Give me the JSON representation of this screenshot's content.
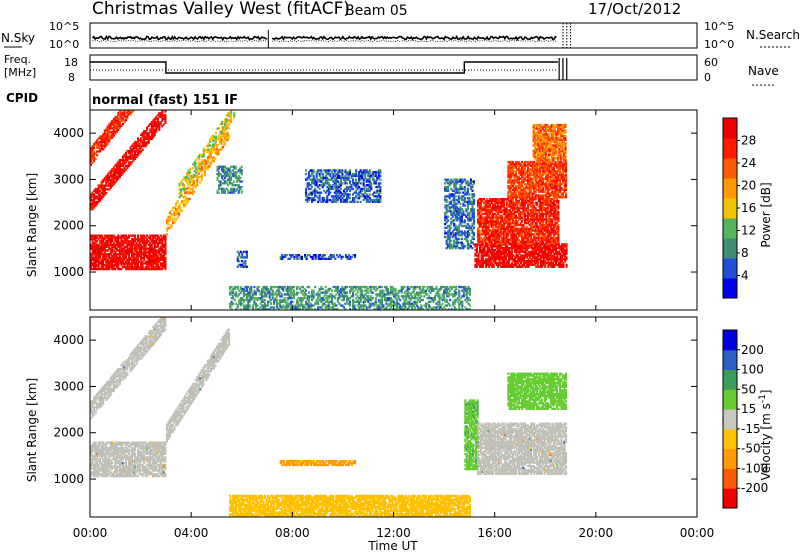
{
  "header": {
    "station": "Christmas Valley West (fitACF)",
    "beam": "Beam 05",
    "date": "17/Oct/2012"
  },
  "top_panels": {
    "nsky_label": "N.Sky",
    "nsky_ticks": [
      "10^5",
      "10^0"
    ],
    "nsearch_label": "N.Search",
    "freq_label_line1": "Freq.",
    "freq_label_line2": "[MHz]",
    "freq_ticks": [
      "18",
      "8"
    ],
    "nave_ticks": [
      "60",
      "0"
    ],
    "nave_label": "Nave",
    "cpid_label": "CPID",
    "cpid_value": "normal (fast) 151 IF"
  },
  "x_axis": {
    "label": "Time UT",
    "ticks": [
      "00:00",
      "04:00",
      "08:00",
      "12:00",
      "16:00",
      "20:00",
      "00:00"
    ]
  },
  "colors": {
    "power_scale": [
      "#0000e6",
      "#1f4fd6",
      "#3c8f74",
      "#55b35c",
      "#f2c300",
      "#ff9a00",
      "#ff5a00",
      "#ff1a00",
      "#ee0000"
    ],
    "velocity_scale": [
      "#ee0000",
      "#ff5a00",
      "#ff9a00",
      "#ffc000",
      "#c8c8c0",
      "#66cc33",
      "#3c9e5c",
      "#2b5fc4",
      "#0000dd"
    ],
    "ground_scatter": "#c0c0b8"
  },
  "chart_data": [
    {
      "type": "heatmap",
      "title": "Power",
      "xlabel": "Time UT",
      "ylabel": "Slant Range [km]",
      "xlim": [
        0,
        24
      ],
      "ylim": [
        180,
        4500
      ],
      "y_ticks": [
        1000,
        2000,
        3000,
        4000
      ],
      "colorbar": {
        "label": "Power [dB]",
        "ticks": [
          4,
          8,
          12,
          16,
          20,
          24,
          28
        ],
        "range": [
          0,
          32
        ]
      },
      "features": [
        {
          "t0": 0.0,
          "t1": 3.0,
          "r0": 1050,
          "r1": 1800,
          "value": 30
        },
        {
          "t0": 0.0,
          "t1": 3.0,
          "r0": 2300,
          "r1": 2700,
          "value": 29,
          "slope": 650
        },
        {
          "t0": 0.0,
          "t1": 2.5,
          "r0": 3300,
          "r1": 3700,
          "value": 26,
          "slope": 700
        },
        {
          "t0": 3.0,
          "t1": 5.5,
          "r0": 1800,
          "r1": 2200,
          "value": 18,
          "slope": 850
        },
        {
          "t0": 3.5,
          "t1": 5.7,
          "r0": 2600,
          "r1": 2900,
          "value": 15,
          "slope": 800
        },
        {
          "t0": 5.0,
          "t1": 6.0,
          "r0": 2700,
          "r1": 3300,
          "value": 9
        },
        {
          "t0": 5.8,
          "t1": 6.2,
          "r0": 1100,
          "r1": 1450,
          "value": 6
        },
        {
          "t0": 7.5,
          "t1": 10.5,
          "r0": 1270,
          "r1": 1390,
          "value": 5
        },
        {
          "t0": 8.5,
          "t1": 11.5,
          "r0": 2500,
          "r1": 3200,
          "value": 6
        },
        {
          "t0": 5.5,
          "t1": 15.0,
          "r0": 180,
          "r1": 700,
          "value": 10
        },
        {
          "t0": 14.0,
          "t1": 15.2,
          "r0": 1500,
          "r1": 3000,
          "value": 7
        },
        {
          "t0": 15.2,
          "t1": 18.8,
          "r0": 1100,
          "r1": 1600,
          "value": 30
        },
        {
          "t0": 15.3,
          "t1": 18.5,
          "r0": 1600,
          "r1": 2600,
          "value": 27
        },
        {
          "t0": 16.5,
          "t1": 18.8,
          "r0": 2600,
          "r1": 3400,
          "value": 25
        },
        {
          "t0": 17.5,
          "t1": 18.8,
          "r0": 3400,
          "r1": 4200,
          "value": 22
        }
      ]
    },
    {
      "type": "heatmap",
      "title": "Velocity",
      "xlabel": "Time UT",
      "ylabel": "Slant Range [km]",
      "xlim": [
        0,
        24
      ],
      "ylim": [
        180,
        4500
      ],
      "y_ticks": [
        1000,
        2000,
        3000,
        4000
      ],
      "colorbar": {
        "label": "Velocity [m s^-1]",
        "ticks": [
          -200,
          -100,
          -50,
          -15,
          15,
          50,
          100,
          200
        ]
      },
      "features": [
        {
          "t0": 0.0,
          "t1": 3.0,
          "r0": 1050,
          "r1": 1800,
          "value": 0
        },
        {
          "t0": 0.0,
          "t1": 3.0,
          "r0": 2300,
          "r1": 2700,
          "value": 0,
          "slope": 650
        },
        {
          "t0": 3.0,
          "t1": 5.5,
          "r0": 1800,
          "r1": 2200,
          "value": 0,
          "slope": 850
        },
        {
          "t0": 7.5,
          "t1": 10.5,
          "r0": 1290,
          "r1": 1390,
          "value": -60
        },
        {
          "t0": 5.5,
          "t1": 15.0,
          "r0": 180,
          "r1": 650,
          "value": -30
        },
        {
          "t0": 14.8,
          "t1": 15.3,
          "r0": 1200,
          "r1": 2700,
          "value": 40
        },
        {
          "t0": 15.3,
          "t1": 18.8,
          "r0": 1100,
          "r1": 2200,
          "value": 0
        },
        {
          "t0": 16.5,
          "t1": 18.8,
          "r0": 2500,
          "r1": 3300,
          "value": 30
        }
      ]
    }
  ]
}
